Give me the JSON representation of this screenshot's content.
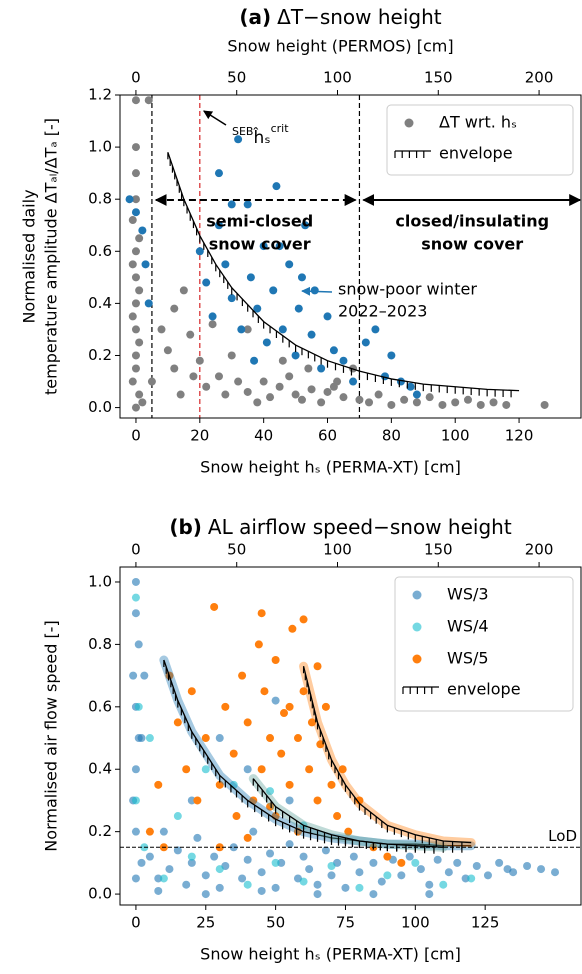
{
  "chart_data": [
    {
      "type": "scatter",
      "title_label": "(a)",
      "title": "ΔT−snow height",
      "x_label": "Snow height hₛ (PERMA-XT) [cm]",
      "x2_label": "Snow height (PERMOS) [cm]",
      "y_label": [
        "Normalised daily",
        "temperature amplitude ΔTₐₗ/ΔTₐ [-]"
      ],
      "xlim": [
        -5,
        139.4
      ],
      "xticks": [
        0,
        20,
        40,
        60,
        80,
        100,
        120
      ],
      "x2lim": [
        -7.9,
        220.8
      ],
      "x2ticks": [
        0,
        50,
        100,
        150,
        200
      ],
      "ylim": [
        -0.04,
        1.2
      ],
      "yticks": [
        {
          "value": 0,
          "label": "0.0"
        },
        0.2,
        0.4,
        0.6,
        0.8,
        {
          "value": 1,
          "label": "1.0"
        },
        1.2
      ],
      "legend": "upper right",
      "series": [
        {
          "name": "ΔT wrt. hₛ",
          "color": "#808080",
          "alpha": 1,
          "x": [
            0,
            0,
            0,
            0,
            -1,
            1,
            0,
            -1,
            0,
            1,
            0,
            -1,
            0,
            1,
            0,
            0,
            -1,
            1,
            0,
            2,
            4,
            5,
            8,
            10,
            12,
            14,
            17,
            20,
            22,
            24,
            26,
            12,
            15,
            18,
            28,
            30,
            32,
            35,
            40,
            42,
            45,
            48,
            50,
            52,
            55,
            58,
            60,
            63,
            65,
            68,
            70,
            73,
            76,
            80,
            84,
            88,
            92,
            96,
            100,
            104,
            108,
            112,
            116,
            128,
            38,
            46,
            54,
            62,
            35
          ],
          "y": [
            1.18,
            1.0,
            0.9,
            0.8,
            0.72,
            0.65,
            0.6,
            0.55,
            0.5,
            0.45,
            0.4,
            0.35,
            0.3,
            0.25,
            0.2,
            0.15,
            0.1,
            0.05,
            0.0,
            0.02,
            1.18,
            0.1,
            0.3,
            0.22,
            0.38,
            0.05,
            0.28,
            0.18,
            0.08,
            0.32,
            0.12,
            0.15,
            0.45,
            0.12,
            0.05,
            0.2,
            0.1,
            0.06,
            0.1,
            0.04,
            0.08,
            0.12,
            0.05,
            0.03,
            0.07,
            0.02,
            0.06,
            0.1,
            0.04,
            0.15,
            0.03,
            0.02,
            0.05,
            0.01,
            0.03,
            0.02,
            0.04,
            0.01,
            0.02,
            0.03,
            0.01,
            0.02,
            0.01,
            0.01,
            0.02,
            0.18,
            0.15,
            0.08,
            0.3
          ]
        },
        {
          "name": null,
          "color": "#1f77b4",
          "alpha": 1,
          "x": [
            0,
            2,
            -2,
            4,
            3,
            20,
            22,
            24,
            26,
            28,
            30,
            32,
            33,
            35,
            36,
            38,
            40,
            41,
            43,
            44,
            46,
            48,
            50,
            51,
            53,
            55,
            56,
            58,
            60,
            62,
            65,
            68,
            72,
            75,
            78,
            80,
            83,
            86,
            88,
            26,
            30,
            45,
            52,
            37
          ],
          "y": [
            0.75,
            0.68,
            0.8,
            0.4,
            0.55,
            0.6,
            0.48,
            0.35,
            0.7,
            0.55,
            0.42,
            1.03,
            0.3,
            0.78,
            0.5,
            0.38,
            0.62,
            0.25,
            0.45,
            0.85,
            0.3,
            0.55,
            0.2,
            0.38,
            0.7,
            0.28,
            0.45,
            0.15,
            0.35,
            0.22,
            0.18,
            0.1,
            0.25,
            0.3,
            0.12,
            0.2,
            0.1,
            0.08,
            0.05,
            0.9,
            0.78,
            0.62,
            0.5,
            0.18
          ]
        }
      ],
      "envelope": {
        "name": "envelope",
        "curves": [
          {
            "color": null,
            "x": [
              10,
              15,
              20,
              25,
              30,
              40,
              50,
              60,
              70,
              80,
              90,
              100,
              110,
              120
            ],
            "y": [
              0.98,
              0.8,
              0.66,
              0.55,
              0.46,
              0.33,
              0.24,
              0.18,
              0.14,
              0.11,
              0.09,
              0.08,
              0.07,
              0.065
            ]
          }
        ]
      },
      "vlines": [
        {
          "x": 5,
          "color": "#000000"
        },
        {
          "x": 20,
          "color": "#d62728"
        },
        {
          "x": 70,
          "color": "#000000"
        }
      ],
      "annotations": {
        "seb": {
          "pre": "SEB",
          "main": "ĥₛ",
          "sup": "crit"
        },
        "semi_closed": [
          "semi-closed",
          "snow cover"
        ],
        "closed": [
          "closed/insulating",
          "snow cover"
        ],
        "snow_poor": {
          "lines": [
            "snow-poor winter",
            "2022–2023"
          ],
          "color": "#1f77b4"
        }
      }
    },
    {
      "type": "scatter",
      "title_label": "(b)",
      "title": "AL airflow speed−snow height",
      "x_label": "Snow height hₛ (PERMA-XT) [cm]",
      "y_label": [
        "Normalised air flow speed [-]"
      ],
      "xlim": [
        -5.7,
        159.3
      ],
      "xticks": [
        0,
        25,
        50,
        75,
        100,
        125
      ],
      "x2lim": [
        -7.9,
        220.8
      ],
      "x2ticks": [
        0,
        50,
        100,
        150,
        200
      ],
      "ylim": [
        -0.035,
        1.048
      ],
      "yticks": [
        {
          "value": 0,
          "label": "0.0"
        },
        0.2,
        0.4,
        0.6,
        0.8,
        {
          "value": 1,
          "label": "1.0"
        }
      ],
      "legend": "upper right",
      "series": [
        {
          "name": "WS/3",
          "color": "#1f77b4",
          "alpha": 0.6,
          "x": [
            0,
            0,
            1,
            -1,
            0,
            1,
            0,
            -1,
            0,
            2,
            0,
            3,
            2,
            5,
            8,
            10,
            12,
            15,
            18,
            20,
            22,
            25,
            28,
            30,
            32,
            35,
            38,
            40,
            42,
            45,
            48,
            50,
            52,
            55,
            58,
            60,
            62,
            65,
            68,
            70,
            72,
            75,
            78,
            80,
            85,
            88,
            92,
            95,
            98,
            102,
            105,
            108,
            112,
            115,
            118,
            122,
            126,
            130,
            133,
            135,
            140,
            145,
            150,
            50,
            40,
            30,
            20,
            55,
            8,
            25,
            45,
            65,
            85,
            105
          ],
          "y": [
            1.0,
            0.9,
            0.8,
            0.7,
            0.6,
            0.5,
            0.4,
            0.3,
            0.2,
            0.1,
            0.05,
            0.7,
            0.5,
            0.12,
            0.05,
            0.2,
            0.08,
            0.14,
            0.03,
            0.1,
            0.18,
            0.06,
            0.12,
            0.02,
            0.09,
            0.15,
            0.05,
            0.11,
            0.2,
            0.07,
            0.13,
            0.02,
            0.1,
            0.16,
            0.05,
            0.12,
            0.08,
            0.03,
            0.14,
            0.06,
            0.1,
            0.02,
            0.12,
            0.07,
            0.1,
            0.04,
            0.11,
            0.06,
            0.12,
            0.08,
            0.03,
            0.11,
            0.07,
            0.1,
            0.05,
            0.09,
            0.06,
            0.1,
            0.08,
            0.07,
            0.09,
            0.08,
            0.07,
            0.62,
            0.4,
            0.5,
            0.3,
            0.3,
            0.01,
            0.0,
            0.01,
            0.0,
            0.0,
            0.0
          ]
        },
        {
          "name": "WS/4",
          "color": "#17becf",
          "alpha": 0.6,
          "x": [
            0,
            1,
            0,
            3,
            10,
            20,
            30,
            40,
            50,
            60,
            70,
            80,
            90,
            100,
            110,
            120,
            35,
            48,
            60,
            15,
            25,
            5
          ],
          "y": [
            0.95,
            0.6,
            0.3,
            0.15,
            0.05,
            0.12,
            0.08,
            0.03,
            0.1,
            0.04,
            0.09,
            0.02,
            0.06,
            0.1,
            0.03,
            0.05,
            0.35,
            0.33,
            0.22,
            0.25,
            0.4,
            0.5
          ]
        },
        {
          "name": "WS/5",
          "color": "#ff7f0e",
          "alpha": 1,
          "x": [
            12,
            15,
            18,
            20,
            22,
            25,
            28,
            30,
            32,
            35,
            36,
            38,
            40,
            42,
            44,
            45,
            46,
            48,
            50,
            50,
            52,
            53,
            55,
            56,
            58,
            58,
            60,
            62,
            63,
            65,
            66,
            68,
            70,
            72,
            74,
            76,
            80,
            85,
            90,
            95,
            5,
            8,
            10,
            45,
            60,
            65,
            30,
            40,
            48,
            55
          ],
          "y": [
            0.7,
            0.55,
            0.4,
            0.65,
            0.3,
            0.5,
            0.92,
            0.35,
            0.6,
            0.45,
            0.25,
            0.7,
            0.55,
            0.3,
            0.8,
            0.4,
            0.65,
            0.5,
            0.25,
            0.75,
            0.45,
            0.58,
            0.35,
            0.85,
            0.5,
            0.2,
            0.65,
            0.4,
            0.55,
            0.3,
            0.48,
            0.6,
            0.35,
            0.25,
            0.4,
            0.2,
            0.3,
            0.15,
            0.12,
            0.1,
            0.2,
            0.35,
            0.15,
            0.9,
            0.88,
            0.73,
            0.15,
            0.18,
            0.28,
            0.6
          ]
        }
      ],
      "envelope": {
        "name": "envelope",
        "curves": [
          {
            "color": "#1f77b4",
            "x": [
              10,
              15,
              20,
              30,
              40,
              50,
              60,
              70,
              80,
              90,
              100,
              110,
              120
            ],
            "y": [
              0.75,
              0.62,
              0.52,
              0.38,
              0.3,
              0.24,
              0.2,
              0.18,
              0.17,
              0.16,
              0.16,
              0.155,
              0.155
            ]
          },
          {
            "color": "#5fa39a",
            "x": [
              42,
              50,
              60,
              70,
              80,
              90,
              100,
              110
            ],
            "y": [
              0.37,
              0.28,
              0.22,
              0.19,
              0.17,
              0.16,
              0.155,
              0.15
            ]
          },
          {
            "color": "#ff7f0e",
            "x": [
              60,
              65,
              70,
              75,
              80,
              90,
              100,
              110,
              120
            ],
            "y": [
              0.73,
              0.55,
              0.43,
              0.35,
              0.29,
              0.22,
              0.19,
              0.17,
              0.165
            ]
          }
        ]
      },
      "hlines": [
        {
          "y": 0.15,
          "label": "LoD"
        }
      ]
    }
  ]
}
